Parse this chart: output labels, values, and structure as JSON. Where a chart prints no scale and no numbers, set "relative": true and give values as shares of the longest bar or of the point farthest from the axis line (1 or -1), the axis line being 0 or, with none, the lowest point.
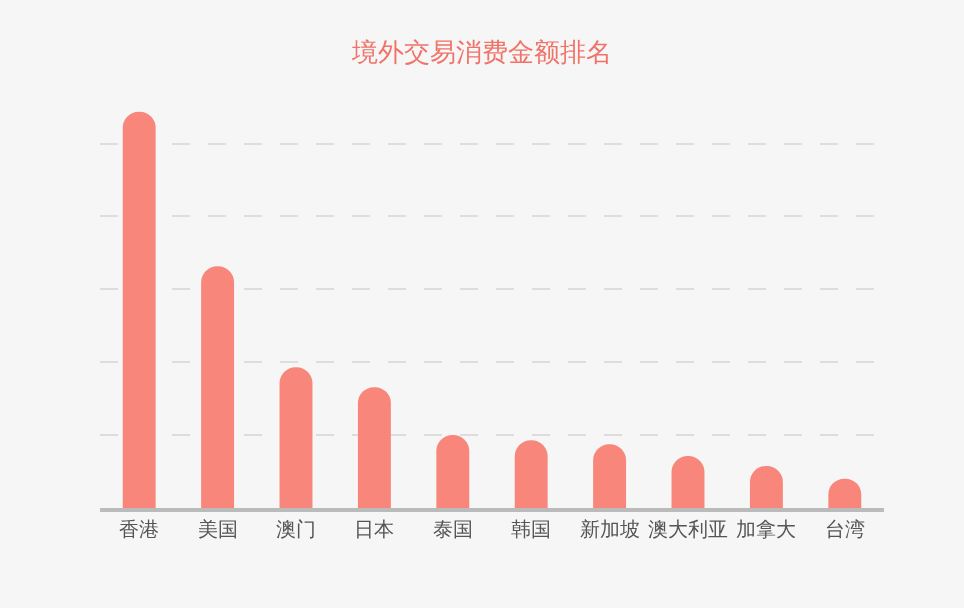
{
  "chart_data": {
    "type": "bar",
    "title": "境外交易消费金额排名",
    "categories": [
      "香港",
      "美国",
      "澳门",
      "日本",
      "泰国",
      "韩国",
      "新加坡",
      "澳大利亚",
      "加拿大",
      "台湾"
    ],
    "values": [
      1,
      0.61,
      0.355,
      0.305,
      0.184,
      0.171,
      0.161,
      0.131,
      0.106,
      0.074
    ],
    "color": "#f8867a",
    "relative": true,
    "grid": "y"
  }
}
